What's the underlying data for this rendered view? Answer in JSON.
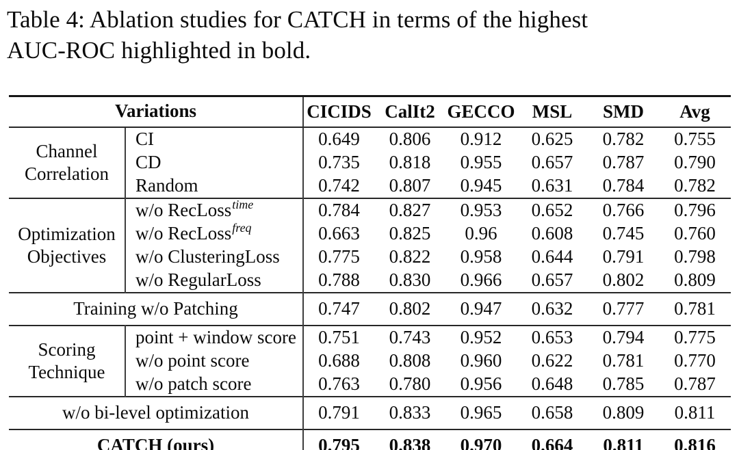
{
  "caption": {
    "lines": [
      "Table 4:  Ablation studies for CATCH in terms of the highest",
      "AUC-ROC highlighted in bold."
    ]
  },
  "table": {
    "variations_label": "Variations",
    "datasets": [
      "CICIDS",
      "CalIt2",
      "GECCO",
      "MSL",
      "SMD",
      "Avg"
    ],
    "sections": [
      {
        "kind": "group",
        "label_lines": [
          "Channel",
          "Correlation"
        ],
        "rows": [
          {
            "label": "CI",
            "values": [
              "0.649",
              "0.806",
              "0.912",
              "0.625",
              "0.782",
              "0.755"
            ]
          },
          {
            "label": "CD",
            "values": [
              "0.735",
              "0.818",
              "0.955",
              "0.657",
              "0.787",
              "0.790"
            ]
          },
          {
            "label": "Random",
            "values": [
              "0.742",
              "0.807",
              "0.945",
              "0.631",
              "0.784",
              "0.782"
            ]
          }
        ]
      },
      {
        "kind": "group",
        "label_lines": [
          "Optimization",
          "Objectives"
        ],
        "rows": [
          {
            "label": "w/o RecLoss",
            "sup": "time",
            "values": [
              "0.784",
              "0.827",
              "0.953",
              "0.652",
              "0.766",
              "0.796"
            ]
          },
          {
            "label": "w/o RecLoss",
            "sup": "freq",
            "values": [
              "0.663",
              "0.825",
              "0.96",
              "0.608",
              "0.745",
              "0.760"
            ]
          },
          {
            "label": "w/o ClusteringLoss",
            "values": [
              "0.775",
              "0.822",
              "0.958",
              "0.644",
              "0.791",
              "0.798"
            ]
          },
          {
            "label": "w/o RegularLoss",
            "values": [
              "0.788",
              "0.830",
              "0.966",
              "0.657",
              "0.802",
              "0.809"
            ]
          }
        ]
      },
      {
        "kind": "span",
        "label": "Training w/o Patching",
        "values": [
          "0.747",
          "0.802",
          "0.947",
          "0.632",
          "0.777",
          "0.781"
        ]
      },
      {
        "kind": "group",
        "label_lines": [
          "Scoring",
          "Technique"
        ],
        "rows": [
          {
            "label": "point + window score",
            "values": [
              "0.751",
              "0.743",
              "0.952",
              "0.653",
              "0.794",
              "0.775"
            ]
          },
          {
            "label": "w/o point score",
            "values": [
              "0.688",
              "0.808",
              "0.960",
              "0.622",
              "0.781",
              "0.770"
            ]
          },
          {
            "label": "w/o patch score",
            "values": [
              "0.763",
              "0.780",
              "0.956",
              "0.648",
              "0.785",
              "0.787"
            ]
          }
        ]
      },
      {
        "kind": "span",
        "label": "w/o bi-level optimization",
        "values": [
          "0.791",
          "0.833",
          "0.965",
          "0.658",
          "0.809",
          "0.811"
        ]
      },
      {
        "kind": "span",
        "label": "CATCH (ours)",
        "bold": true,
        "values": [
          "0.795",
          "0.838",
          "0.970",
          "0.664",
          "0.811",
          "0.816"
        ]
      }
    ]
  }
}
